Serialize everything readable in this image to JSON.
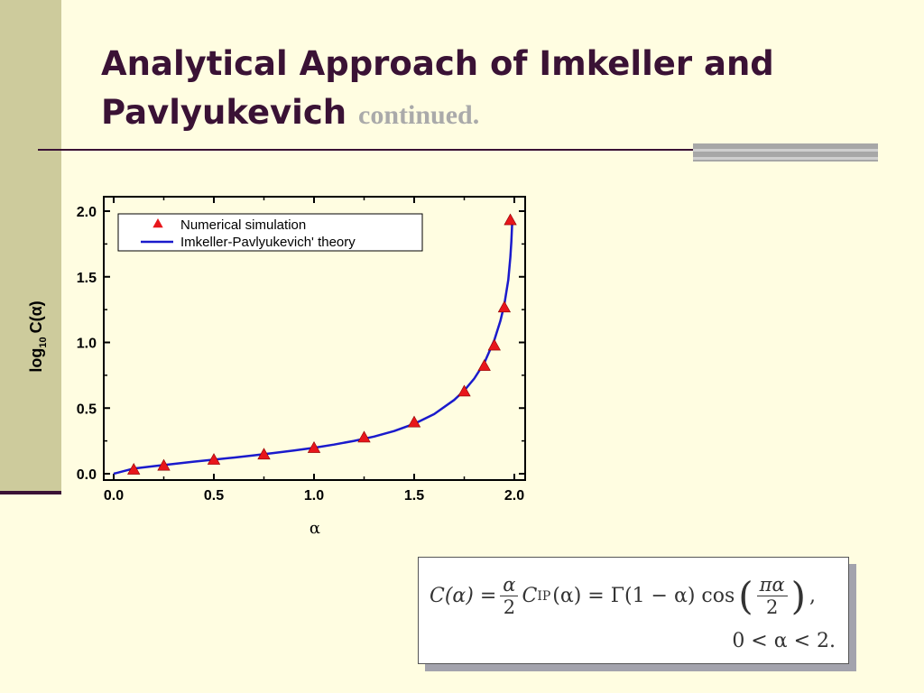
{
  "slide": {
    "title_main": "Analytical Approach of Imkeller and Pavlyukevich",
    "title_continued": "continued."
  },
  "formula": {
    "line1": {
      "lhs": "C(α) =",
      "frac_num": "α",
      "frac_den": "2",
      "c_ip": "C",
      "c_ip_sub": "IP",
      "mid": "(α) = Γ(1 − α) cos",
      "cos_num": "πα",
      "cos_den": "2",
      "tail": ","
    },
    "line2": "0 < α < 2."
  },
  "chart_data": {
    "type": "line",
    "xlabel": "α",
    "ylabel_main": "log",
    "ylabel_sub": "10",
    "ylabel_rest": "C(α)",
    "xlim": [
      0.0,
      2.0
    ],
    "ylim": [
      0.0,
      2.0
    ],
    "xticks": [
      0.0,
      0.5,
      1.0,
      1.5,
      2.0
    ],
    "yticks": [
      0.0,
      0.5,
      1.0,
      1.5,
      2.0
    ],
    "xtick_labels": [
      "0.0",
      "0.5",
      "1.0",
      "1.5",
      "2.0"
    ],
    "ytick_labels": [
      "0.0",
      "0.5",
      "1.0",
      "1.5",
      "2.0"
    ],
    "grid": false,
    "legend_position": "top-left",
    "series": [
      {
        "name": "Numerical simulation",
        "style": "markers",
        "marker": "triangle",
        "color": "#E8161B",
        "x": [
          0.1,
          0.25,
          0.5,
          0.75,
          1.0,
          1.25,
          1.5,
          1.75,
          1.85,
          1.9,
          1.95,
          1.98
        ],
        "y": [
          0.03,
          0.06,
          0.105,
          0.145,
          0.195,
          0.275,
          0.39,
          0.625,
          0.82,
          0.975,
          1.265,
          1.93
        ]
      },
      {
        "name": "Imkeller-Pavlyukevich' theory",
        "style": "line",
        "color": "#1A1ACC",
        "x": [
          0.0,
          0.1,
          0.2,
          0.3,
          0.4,
          0.5,
          0.6,
          0.7,
          0.8,
          0.9,
          1.0,
          1.1,
          1.2,
          1.3,
          1.4,
          1.5,
          1.6,
          1.7,
          1.75,
          1.8,
          1.85,
          1.9,
          1.93,
          1.95,
          1.97,
          1.98,
          1.985,
          1.99
        ],
        "y": [
          0.0,
          0.04,
          0.058,
          0.075,
          0.092,
          0.107,
          0.123,
          0.14,
          0.158,
          0.177,
          0.198,
          0.222,
          0.25,
          0.283,
          0.325,
          0.38,
          0.454,
          0.562,
          0.634,
          0.725,
          0.844,
          1.017,
          1.163,
          1.288,
          1.476,
          1.65,
          1.77,
          1.94
        ]
      }
    ]
  }
}
